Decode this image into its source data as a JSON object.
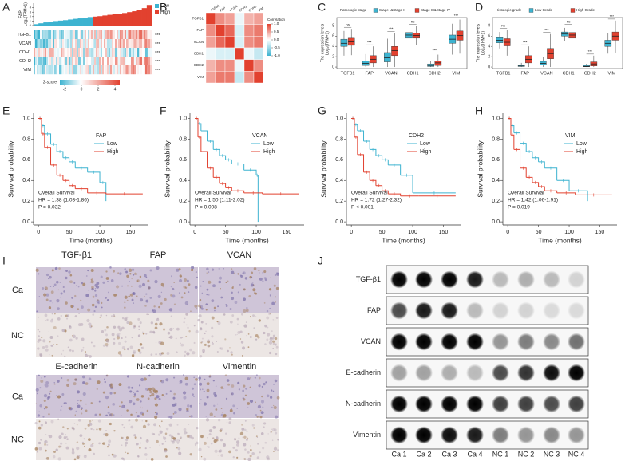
{
  "figure": {
    "panel_letters": [
      "A",
      "B",
      "C",
      "D",
      "E",
      "F",
      "G",
      "H",
      "I",
      "J"
    ]
  },
  "chart_data": [
    {
      "type": "expression-heatmap",
      "ylabel": "FAP",
      "ylabel2": "Log₂(TPM+1)",
      "ylim": [
        0,
        5
      ],
      "yticks": [
        0,
        1,
        2,
        3,
        4
      ],
      "series": [
        {
          "name": "Low",
          "color": "#3db3d0",
          "values": [
            0.3,
            0.5,
            0.7,
            0.85,
            1.0,
            1.1,
            1.2,
            1.35,
            1.5,
            1.6,
            1.75,
            1.9
          ]
        },
        {
          "name": "High",
          "color": "#e2412f",
          "values": [
            2.0,
            2.1,
            2.25,
            2.4,
            2.5,
            2.65,
            2.8,
            3.0,
            3.2,
            3.5,
            3.9,
            4.6
          ]
        }
      ],
      "rows": [
        "TGFB1",
        "VCAN",
        "CDH1",
        "CDH2",
        "VIM"
      ],
      "significance": [
        "***",
        "***",
        "***",
        "***",
        "***"
      ],
      "colorbar_title": "Z-score",
      "colorbar_ticks": [
        -2,
        0,
        2,
        4
      ]
    },
    {
      "type": "correlation",
      "labels": [
        "TGFB1",
        "FAP",
        "VCAN",
        "CDH1",
        "CDH2",
        "VIM"
      ],
      "matrix": [
        [
          1,
          0.6,
          0.5,
          -0.1,
          0.4,
          0.5
        ],
        [
          0.6,
          1,
          0.8,
          -0.2,
          0.6,
          0.7
        ],
        [
          0.5,
          0.8,
          1,
          -0.2,
          0.6,
          0.7
        ],
        [
          -0.1,
          -0.2,
          -0.2,
          1,
          -0.1,
          -0.3
        ],
        [
          0.4,
          0.6,
          0.6,
          -0.1,
          1,
          0.6
        ],
        [
          0.5,
          0.7,
          0.7,
          -0.3,
          0.6,
          1
        ]
      ],
      "colorbar_title": "Correlation",
      "colorbar_ticks": [
        {
          "value": 1,
          "label": "1.0"
        },
        {
          "value": 0.5,
          "label": "0.5"
        },
        {
          "value": 0,
          "label": "0.0"
        },
        {
          "value": -0.5,
          "label": "-0.5"
        },
        {
          "value": -1,
          "label": "-1.0"
        }
      ]
    },
    {
      "type": "box",
      "legend_title": "Pathologic stage",
      "ylabel": "The expression levels",
      "ylabel2": "Log₂(TPM+1)",
      "categories": [
        "TGFB1",
        "FAP",
        "VCAN",
        "CDH1",
        "CDH2",
        "VIM"
      ],
      "significance": [
        "ns",
        "***",
        "***",
        "ns",
        "***",
        "***"
      ],
      "ylim": [
        -0.3,
        9.6
      ],
      "yticks": [
        0,
        2,
        4,
        6,
        8
      ],
      "series": [
        {
          "name": "Stage I&Stage II",
          "color": "#3db3d0",
          "lo": [
            2.2,
            0,
            0,
            4.2,
            0,
            2.4
          ],
          "q1": [
            4.0,
            0.3,
            1.0,
            5.6,
            0.1,
            4.6
          ],
          "median": [
            4.6,
            0.7,
            1.8,
            6.2,
            0.3,
            5.4
          ],
          "q3": [
            5.4,
            1.2,
            2.8,
            6.7,
            0.6,
            6.2
          ],
          "hi": [
            7.0,
            2.5,
            5.5,
            8.0,
            1.2,
            8.4
          ]
        },
        {
          "name": "Stage III&Stage IV",
          "color": "#e2412f",
          "lo": [
            2.3,
            0,
            0,
            4.2,
            0,
            2.6
          ],
          "q1": [
            4.2,
            0.8,
            2.2,
            5.6,
            0.3,
            5.2
          ],
          "median": [
            4.9,
            1.5,
            3.2,
            6.1,
            0.8,
            6.1
          ],
          "q3": [
            5.6,
            2.2,
            4.0,
            6.6,
            1.2,
            7.0
          ],
          "hi": [
            7.4,
            4.0,
            6.6,
            8.0,
            2.4,
            9.2
          ]
        }
      ]
    },
    {
      "type": "box",
      "legend_title": "Histologic grade",
      "ylabel": "The expression levels",
      "ylabel2": "Log₂(TPM+1)",
      "categories": [
        "TGFB1",
        "FAP",
        "VCAN",
        "CDH1",
        "CDH2",
        "VIM"
      ],
      "significance": [
        "ns",
        "***",
        "***",
        "ns",
        "***",
        "***"
      ],
      "ylim": [
        -0.3,
        9.6
      ],
      "yticks": [
        0,
        2,
        4,
        6,
        8
      ],
      "series": [
        {
          "name": "Low Grade",
          "color": "#3db3d0",
          "lo": [
            3.6,
            0,
            0,
            5.0,
            0,
            2.6
          ],
          "q1": [
            4.7,
            0.1,
            0.4,
            6.0,
            0.05,
            4.0
          ],
          "median": [
            5.2,
            0.2,
            0.7,
            6.4,
            0.1,
            4.6
          ],
          "q3": [
            5.7,
            0.4,
            1.1,
            6.8,
            0.3,
            5.2
          ],
          "hi": [
            6.8,
            0.8,
            1.9,
            7.6,
            0.6,
            6.6
          ]
        },
        {
          "name": "High Grade",
          "color": "#e2412f",
          "lo": [
            2.2,
            0,
            0,
            4.0,
            0,
            2.8
          ],
          "q1": [
            4.1,
            0.8,
            1.6,
            5.6,
            0.2,
            5.2
          ],
          "median": [
            4.8,
            1.5,
            2.6,
            6.2,
            0.6,
            6.0
          ],
          "q3": [
            5.5,
            2.2,
            3.6,
            6.7,
            1.0,
            6.8
          ],
          "hi": [
            7.2,
            4.0,
            6.4,
            8.0,
            2.2,
            9.0
          ]
        }
      ]
    },
    {
      "type": "km",
      "legend_title": "FAP",
      "xlabel": "Time (months)",
      "ylabel": "Survival probability",
      "annotations": [
        "Overall Survival",
        "HR = 1.38 (1.03-1.86)",
        "P = 0.032"
      ],
      "xlim": [
        -8,
        178
      ],
      "xticks": [
        0,
        50,
        100,
        150
      ],
      "ylim": [
        -0.03,
        1.05
      ],
      "yticks": [
        {
          "value": 0,
          "label": "0.0"
        },
        {
          "value": 0.2,
          "label": "0.2"
        },
        {
          "value": 0.4,
          "label": "0.4"
        },
        {
          "value": 0.6,
          "label": "0.6"
        },
        {
          "value": 0.8,
          "label": "0.8"
        },
        {
          "value": 1,
          "label": "1.0"
        }
      ],
      "series": [
        {
          "name": "Low",
          "color": "#3db3d0",
          "x": [
            0,
            5,
            10,
            20,
            30,
            40,
            50,
            60,
            80,
            100,
            110
          ],
          "values": [
            1,
            0.93,
            0.85,
            0.75,
            0.68,
            0.62,
            0.58,
            0.52,
            0.48,
            0.38,
            0.2
          ]
        },
        {
          "name": "High",
          "color": "#e2412f",
          "x": [
            0,
            5,
            10,
            20,
            30,
            40,
            50,
            60,
            80,
            110,
            170
          ],
          "values": [
            1,
            0.85,
            0.72,
            0.55,
            0.45,
            0.4,
            0.35,
            0.32,
            0.28,
            0.27,
            0.27
          ]
        }
      ]
    },
    {
      "type": "km",
      "legend_title": "VCAN",
      "xlabel": "Time (months)",
      "ylabel": "Survival probability",
      "annotations": [
        "Overall Survival",
        "HR = 1.50 (1.11-2.02)",
        "P = 0.008"
      ],
      "xlim": [
        -8,
        178
      ],
      "xticks": [
        0,
        50,
        100,
        150
      ],
      "ylim": [
        -0.03,
        1.05
      ],
      "yticks": [
        {
          "value": 0,
          "label": "0.0"
        },
        {
          "value": 0.2,
          "label": "0.2"
        },
        {
          "value": 0.4,
          "label": "0.4"
        },
        {
          "value": 0.6,
          "label": "0.6"
        },
        {
          "value": 0.8,
          "label": "0.8"
        },
        {
          "value": 1,
          "label": "1.0"
        }
      ],
      "series": [
        {
          "name": "Low",
          "color": "#3db3d0",
          "x": [
            0,
            5,
            10,
            20,
            30,
            40,
            50,
            60,
            80,
            100,
            103
          ],
          "values": [
            1,
            0.95,
            0.88,
            0.78,
            0.7,
            0.64,
            0.6,
            0.56,
            0.5,
            0.45,
            0
          ]
        },
        {
          "name": "High",
          "color": "#e2412f",
          "x": [
            0,
            5,
            10,
            20,
            30,
            40,
            50,
            60,
            80,
            110,
            170
          ],
          "values": [
            1,
            0.82,
            0.68,
            0.52,
            0.43,
            0.37,
            0.33,
            0.3,
            0.28,
            0.27,
            0.27
          ]
        }
      ]
    },
    {
      "type": "km",
      "legend_title": "CDH2",
      "xlabel": "Time (months)",
      "ylabel": "Survival probability",
      "annotations": [
        "Overall Survival",
        "HR = 1.72 (1.27-2.32)",
        "P < 0.001"
      ],
      "xlim": [
        -8,
        178
      ],
      "xticks": [
        0,
        50,
        100,
        150
      ],
      "ylim": [
        -0.03,
        1.05
      ],
      "yticks": [
        {
          "value": 0,
          "label": "0.0"
        },
        {
          "value": 0.2,
          "label": "0.2"
        },
        {
          "value": 0.4,
          "label": "0.4"
        },
        {
          "value": 0.6,
          "label": "0.6"
        },
        {
          "value": 0.8,
          "label": "0.8"
        },
        {
          "value": 1,
          "label": "1.0"
        }
      ],
      "series": [
        {
          "name": "Low",
          "color": "#3db3d0",
          "x": [
            0,
            5,
            10,
            20,
            30,
            40,
            50,
            60,
            80,
            100,
            170
          ],
          "values": [
            1,
            0.94,
            0.88,
            0.78,
            0.7,
            0.64,
            0.6,
            0.55,
            0.45,
            0.28,
            0.28
          ]
        },
        {
          "name": "High",
          "color": "#e2412f",
          "x": [
            0,
            5,
            10,
            20,
            30,
            40,
            50,
            60,
            80,
            110,
            170
          ],
          "values": [
            1,
            0.82,
            0.65,
            0.48,
            0.4,
            0.35,
            0.3,
            0.27,
            0.25,
            0.25,
            0.25
          ]
        }
      ]
    },
    {
      "type": "km",
      "legend_title": "VIM",
      "xlabel": "Time (months)",
      "ylabel": "Survival probability",
      "annotations": [
        "Overall Survival",
        "HR = 1.42 (1.06-1.91)",
        "P = 0.019"
      ],
      "xlim": [
        -8,
        178
      ],
      "xticks": [
        0,
        50,
        100,
        150
      ],
      "ylim": [
        -0.03,
        1.05
      ],
      "yticks": [
        {
          "value": 0,
          "label": "0.0"
        },
        {
          "value": 0.2,
          "label": "0.2"
        },
        {
          "value": 0.4,
          "label": "0.4"
        },
        {
          "value": 0.6,
          "label": "0.6"
        },
        {
          "value": 0.8,
          "label": "0.8"
        },
        {
          "value": 1,
          "label": "1.0"
        }
      ],
      "series": [
        {
          "name": "Low",
          "color": "#3db3d0",
          "x": [
            0,
            5,
            10,
            20,
            30,
            40,
            50,
            60,
            80,
            100,
            130
          ],
          "values": [
            1,
            0.93,
            0.86,
            0.76,
            0.68,
            0.62,
            0.58,
            0.52,
            0.4,
            0.3,
            0.2
          ]
        },
        {
          "name": "High",
          "color": "#e2412f",
          "x": [
            0,
            5,
            10,
            20,
            30,
            40,
            50,
            60,
            80,
            110,
            170
          ],
          "values": [
            1,
            0.84,
            0.7,
            0.52,
            0.43,
            0.38,
            0.34,
            0.3,
            0.28,
            0.26,
            0.26
          ]
        }
      ]
    }
  ],
  "ihc": {
    "columns_top": [
      "TGF-β1",
      "FAP",
      "VCAN"
    ],
    "columns_bottom": [
      "E-cadherin",
      "N-cadherin",
      "Vimentin"
    ],
    "rows": [
      "Ca",
      "NC"
    ]
  },
  "blot": {
    "rows": [
      "TGF-β1",
      "FAP",
      "VCAN",
      "E-cadherin",
      "N-cadherin",
      "Vimentin"
    ],
    "columns": [
      "Ca 1",
      "Ca 2",
      "Ca 3",
      "Ca 4",
      "NC 1",
      "NC 2",
      "NC 3",
      "NC 4"
    ]
  }
}
